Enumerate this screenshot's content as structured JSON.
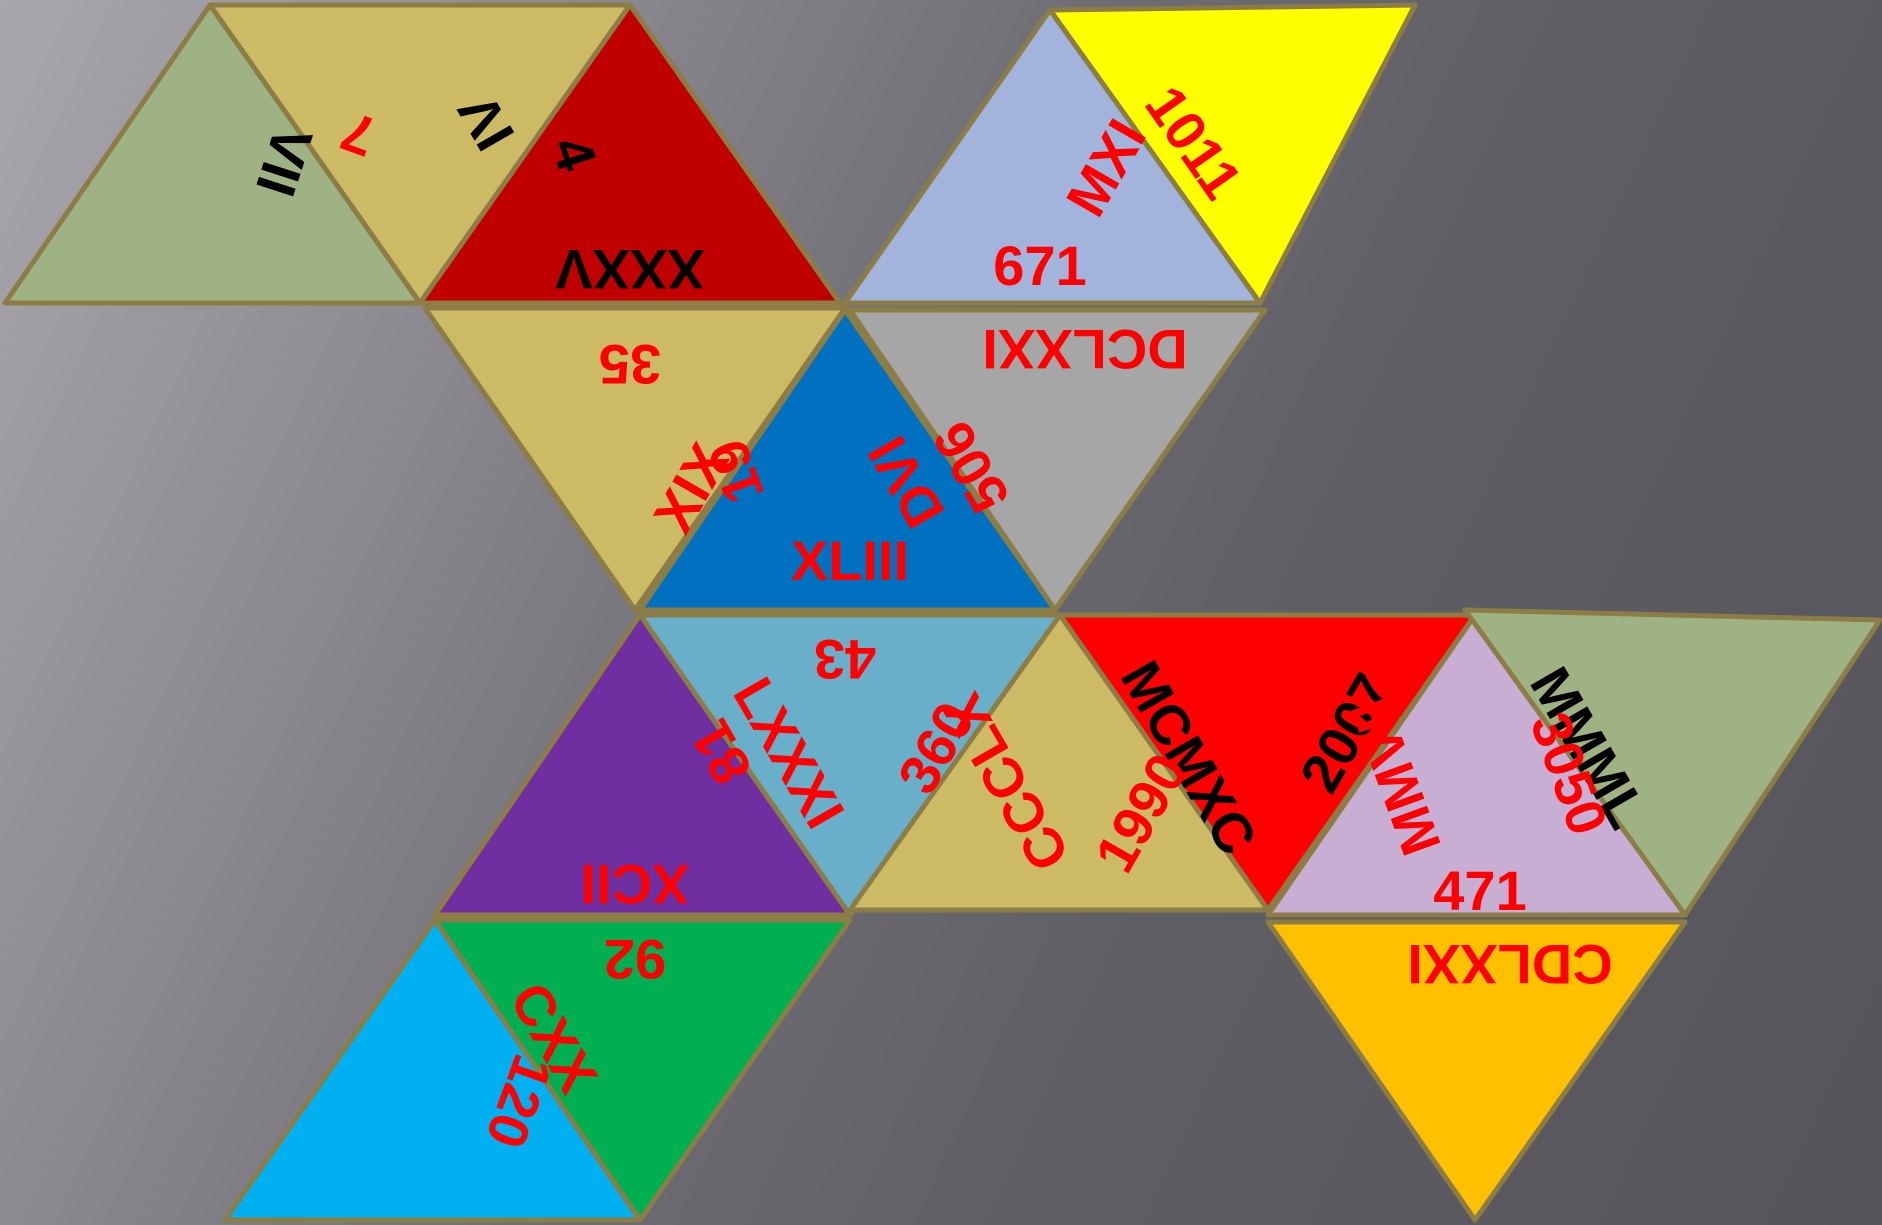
{
  "puzzle": {
    "triangles": [
      {
        "color": "#9fb284"
      },
      {
        "color": "#cdba65"
      },
      {
        "color": "#c00000"
      },
      {
        "color": "#a3b4dc"
      },
      {
        "color": "#ffff00"
      },
      {
        "color": "#cdba65"
      },
      {
        "color": "#0070c0"
      },
      {
        "color": "#a6a6a6"
      },
      {
        "color": "#702fa0"
      },
      {
        "color": "#6aafc9"
      },
      {
        "color": "#cdba65"
      },
      {
        "color": "#ff0000"
      },
      {
        "color": "#c8aed2"
      },
      {
        "color": "#9fb284"
      },
      {
        "color": "#00b0f0"
      },
      {
        "color": "#00b050"
      },
      {
        "color": "#ffc000"
      }
    ],
    "labels": [
      {
        "text": "VII",
        "color": "#000000"
      },
      {
        "text": "7",
        "color": "#ff0000"
      },
      {
        "text": "IV",
        "color": "#000000"
      },
      {
        "text": "4",
        "color": "#000000"
      },
      {
        "text": "XXXV",
        "color": "#000000"
      },
      {
        "text": "MXI",
        "color": "#ff0000"
      },
      {
        "text": "1011",
        "color": "#ff0000"
      },
      {
        "text": "671",
        "color": "#ff0000"
      },
      {
        "text": "35",
        "color": "#ff0000"
      },
      {
        "text": "DCLXXI",
        "color": "#ff0000"
      },
      {
        "text": "XIX",
        "color": "#ff0000"
      },
      {
        "text": "19",
        "color": "#ff0000"
      },
      {
        "text": "DVI",
        "color": "#ff0000"
      },
      {
        "text": "506",
        "color": "#ff0000"
      },
      {
        "text": "XLIII",
        "color": "#ff0000"
      },
      {
        "text": "43",
        "color": "#ff0000"
      },
      {
        "text": "LXXXI",
        "color": "#ff0000"
      },
      {
        "text": "81",
        "color": "#ff0000"
      },
      {
        "text": "360",
        "color": "#ff0000"
      },
      {
        "text": "CCCLX",
        "color": "#ff0000"
      },
      {
        "text": "MCMXC",
        "color": "#000000"
      },
      {
        "text": "1990",
        "color": "#ff0000"
      },
      {
        "text": "2007",
        "color": "#000000"
      },
      {
        "text": "MMVII",
        "color": "#ff0000"
      },
      {
        "text": "MMML",
        "color": "#000000"
      },
      {
        "text": "3050",
        "color": "#ff0000"
      },
      {
        "text": "471",
        "color": "#ff0000"
      },
      {
        "text": "XCII",
        "color": "#ff0000"
      },
      {
        "text": "92",
        "color": "#ff0000"
      },
      {
        "text": "CDLXXI",
        "color": "#ff0000"
      },
      {
        "text": "CXX",
        "color": "#ff0000"
      },
      {
        "text": "120",
        "color": "#ff0000"
      }
    ]
  }
}
